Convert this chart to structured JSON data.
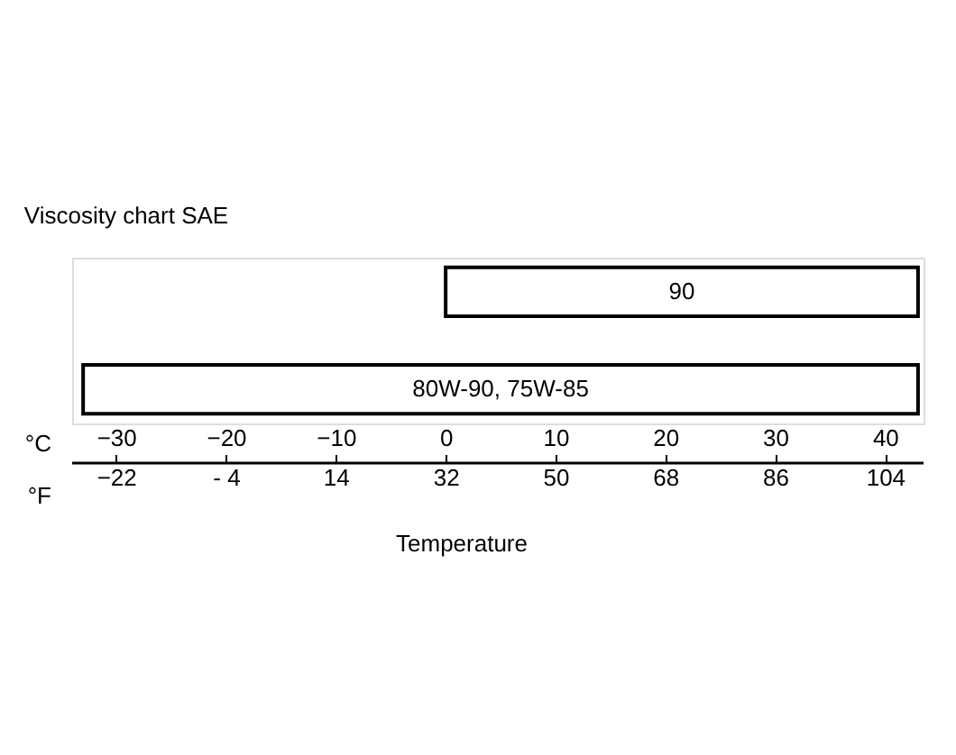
{
  "chart_data": {
    "type": "bar",
    "orientation": "horizontal",
    "title": "Viscosity chart SAE",
    "xlabel": "°C",
    "x2label": "°F",
    "annotations": [
      "Temperature"
    ],
    "categories": [
      "90",
      "80W-90, 75W-85"
    ],
    "base": [
      0,
      -33
    ],
    "values": [
      43,
      76
    ],
    "color": "#ffffff",
    "xlim": [
      -34,
      43.5
    ],
    "xticks": [
      -30,
      -20,
      -10,
      0,
      10,
      20,
      30,
      40
    ],
    "x2lim": [
      -29.2,
      110.3
    ],
    "x2ticks": [
      -22,
      {
        "value": -4,
        "label": "- 4"
      },
      14,
      32,
      50,
      68,
      86,
      104
    ],
    "tick_labels": "x",
    "grid": false
  }
}
